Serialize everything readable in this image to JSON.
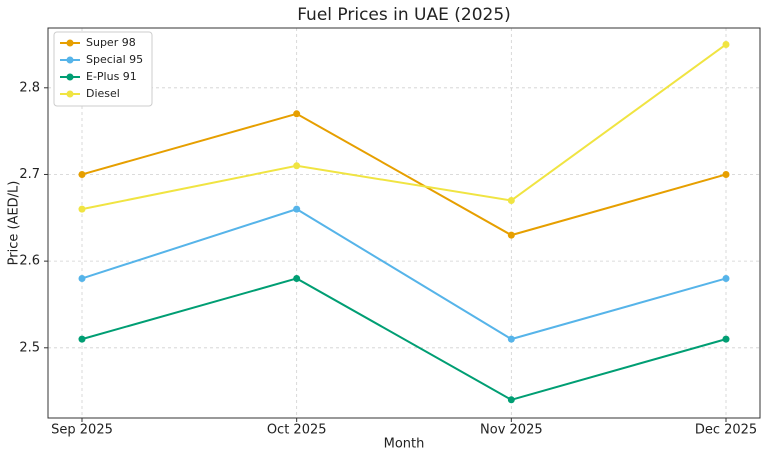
{
  "chart_data": {
    "type": "line",
    "title": "Fuel Prices in UAE (2025)",
    "x_label": "Month",
    "y_label": "Price (AED/L)",
    "categories": [
      "Sep 2025",
      "Oct 2025",
      "Nov 2025",
      "Dec 2025"
    ],
    "series": [
      {
        "name": "Super 98",
        "color": "#e69f00",
        "values": [
          2.7,
          2.77,
          2.63,
          2.7
        ]
      },
      {
        "name": "Special 95",
        "color": "#56b4e9",
        "values": [
          2.58,
          2.66,
          2.51,
          2.58
        ]
      },
      {
        "name": "E-Plus 91",
        "color": "#009e73",
        "values": [
          2.51,
          2.58,
          2.44,
          2.51
        ]
      },
      {
        "name": "Diesel",
        "color": "#f0e442",
        "values": [
          2.66,
          2.71,
          2.67,
          2.85
        ]
      }
    ],
    "ylim": [
      2.419,
      2.869
    ],
    "yticks": [
      2.5,
      2.6,
      2.7,
      2.8
    ],
    "grid": true,
    "legend": "upper-left"
  }
}
